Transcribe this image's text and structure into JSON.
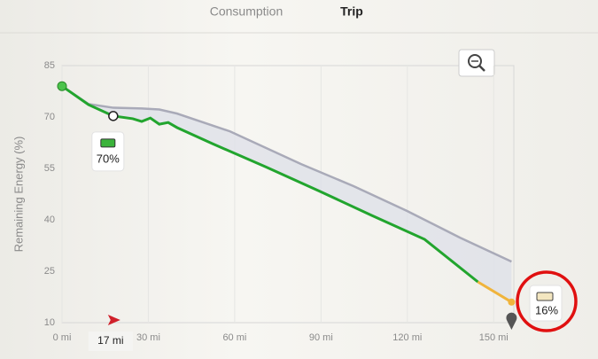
{
  "tabs": [
    "Consumption",
    "Trip"
  ],
  "chart_data": {
    "type": "line",
    "y_label": "Remaining Energy (%)",
    "xlim": [
      0,
      157
    ],
    "ylim": [
      10,
      85
    ],
    "xticks": [
      {
        "value": 0,
        "label": "0 mi"
      },
      {
        "value": 30,
        "label": "30 mi"
      },
      {
        "value": 60,
        "label": "60 mi"
      },
      {
        "value": 90,
        "label": "90 mi"
      },
      {
        "value": 120,
        "label": "120 mi"
      },
      {
        "value": 150,
        "label": "150 mi"
      }
    ],
    "yticks": [
      10,
      25,
      40,
      55,
      70,
      85
    ],
    "grid": true,
    "series": [
      {
        "color": "#a9aab8",
        "x": [
          0,
          9.2,
          17.8,
          27.7,
          33.8,
          40,
          58.4,
          83,
          101.4,
          119.9,
          138.3,
          156.2
        ],
        "values": [
          79,
          73.8,
          72.7,
          72.5,
          72.2,
          71,
          65.8,
          56.3,
          49.8,
          42.6,
          34.8,
          27.8
        ]
      },
      {
        "color": "#22a52e",
        "x": [
          0,
          9.2,
          17.8,
          24.6,
          27.7,
          30.7,
          33.8,
          36.9,
          40,
          52.3,
          70.7,
          89.1,
          107.6,
          126,
          144.5
        ],
        "values": [
          79,
          73.6,
          70.3,
          69.5,
          68.7,
          69.7,
          67.9,
          68.4,
          66.9,
          62.2,
          55.5,
          48.5,
          41.3,
          34.3,
          21.9
        ]
      },
      {
        "color": "#f0b43c",
        "x": [
          144.5,
          156.2
        ],
        "values": [
          21.9,
          16
        ]
      }
    ],
    "annotations": [
      "70%",
      "17 mi",
      "16%"
    ]
  }
}
